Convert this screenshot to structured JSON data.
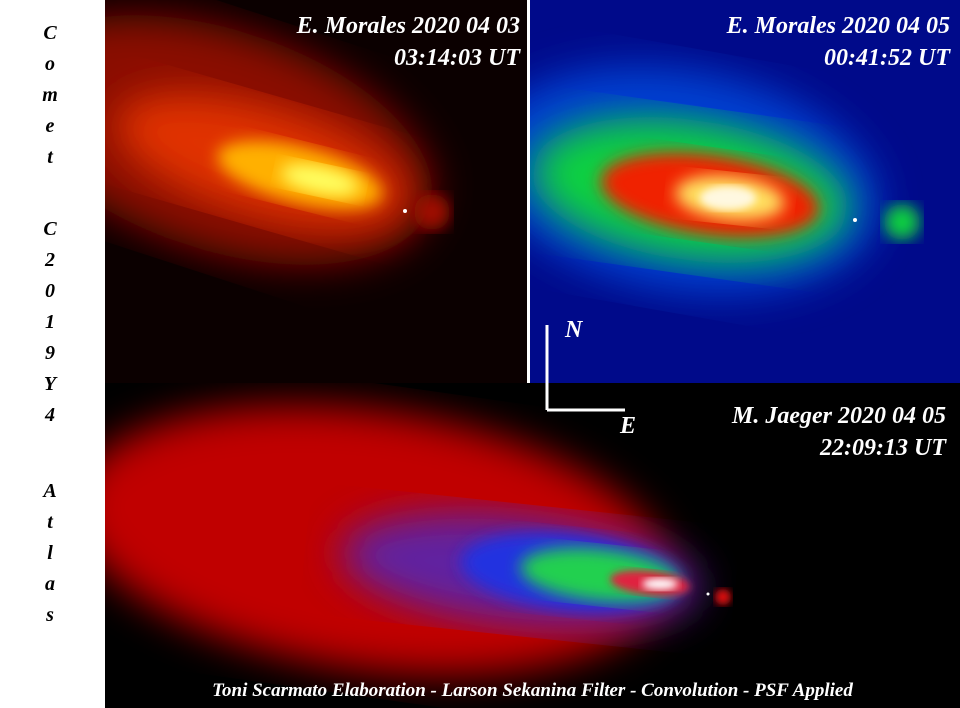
{
  "side_title": [
    "Comet",
    "C2019Y4",
    "Atlas"
  ],
  "panels": [
    {
      "observer": "E. Morales 2020 04 03",
      "time": "03:14:03 UT"
    },
    {
      "observer": "E. Morales 2020 04 05",
      "time": "00:41:52 UT"
    },
    {
      "observer": "M. Jaeger 2020 04 05",
      "time": "22:09:13 UT"
    }
  ],
  "compass": {
    "north": "N",
    "east": "E"
  },
  "caption": "Toni Scarmato Elaboration - Larson Sekanina Filter - Convolution - PSF Applied"
}
